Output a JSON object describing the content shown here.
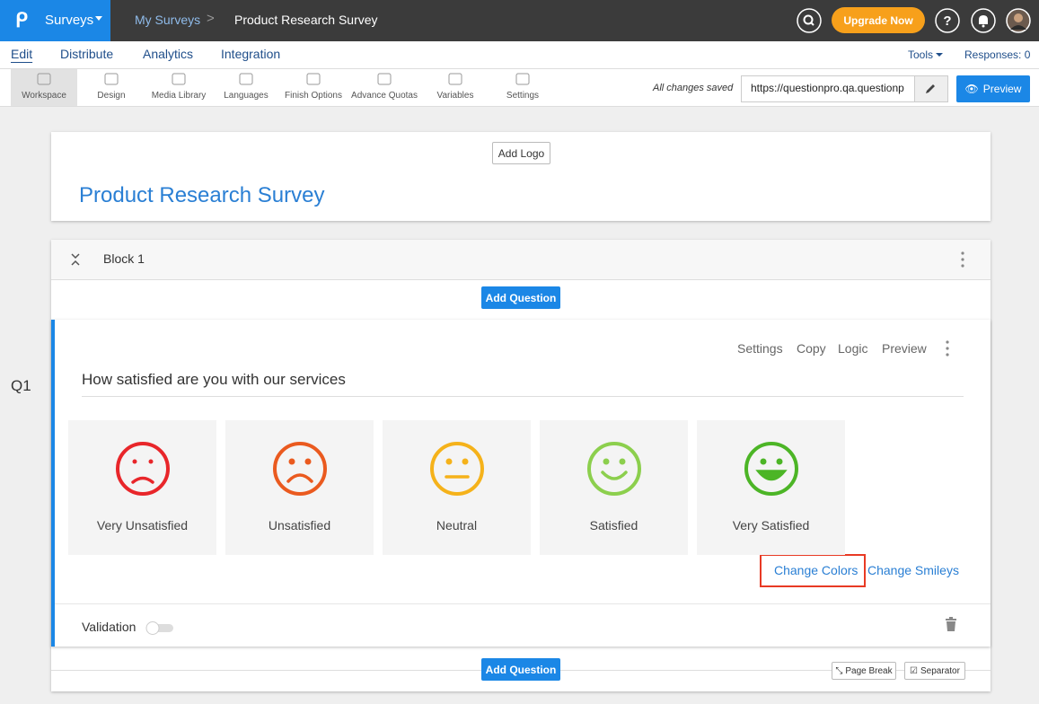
{
  "top_bar": {
    "app": "Surveys",
    "breadcrumb": [
      "My Surveys",
      "Product Research Survey"
    ],
    "upgrade": "Upgrade Now"
  },
  "tabs": [
    "Edit",
    "Distribute",
    "Analytics",
    "Integration"
  ],
  "tools": "Tools",
  "responses": "Responses: 0",
  "toolbar": [
    "Workspace",
    "Design",
    "Media Library",
    "Languages",
    "Finish Options",
    "Advance Quotas",
    "Variables",
    "Settings"
  ],
  "status": "All changes saved",
  "url": "https://questionpro.qa.questionp",
  "preview": "Preview",
  "header": {
    "add_logo": "Add Logo",
    "title": "Product Research Survey"
  },
  "block": {
    "name": "Block 1",
    "add_question": "Add Question"
  },
  "question": {
    "number": "Q1",
    "actions": [
      "Settings",
      "Copy",
      "Logic",
      "Preview"
    ],
    "text": "How satisfied are you with our services",
    "options": [
      {
        "label": "Very Unsatisfied",
        "color": "#e8262a"
      },
      {
        "label": "Unsatisfied",
        "color": "#ea5a1f"
      },
      {
        "label": "Neutral",
        "color": "#f5b21a"
      },
      {
        "label": "Satisfied",
        "color": "#8ccf4d"
      },
      {
        "label": "Very Satisfied",
        "color": "#4cb526"
      }
    ],
    "links": [
      "Change Colors",
      "Change Smileys"
    ],
    "validation": "Validation"
  },
  "footer": {
    "add_question": "Add Question",
    "page_break": "Page Break",
    "separator": "Separator"
  }
}
